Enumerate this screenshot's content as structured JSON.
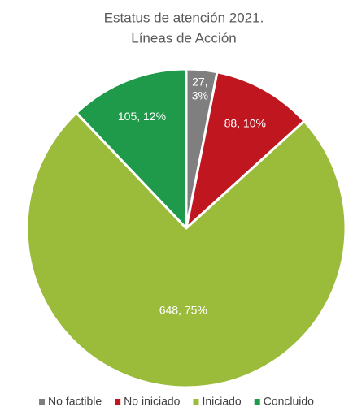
{
  "chart_data": {
    "type": "pie",
    "title": [
      "Estatus de atención 2021.",
      "Líneas de Acción"
    ],
    "categories": [
      "No factible",
      "No iniciado",
      "Iniciado",
      "Concluido"
    ],
    "values": [
      27,
      88,
      648,
      105
    ],
    "value_labels": [
      "27, 3%",
      "88, 10%",
      "648, 75%",
      "105, 12%"
    ],
    "colors": [
      "#7f7f7f",
      "#c0161f",
      "#9bbb3b",
      "#1e9a4a"
    ],
    "legend": "bottom"
  }
}
